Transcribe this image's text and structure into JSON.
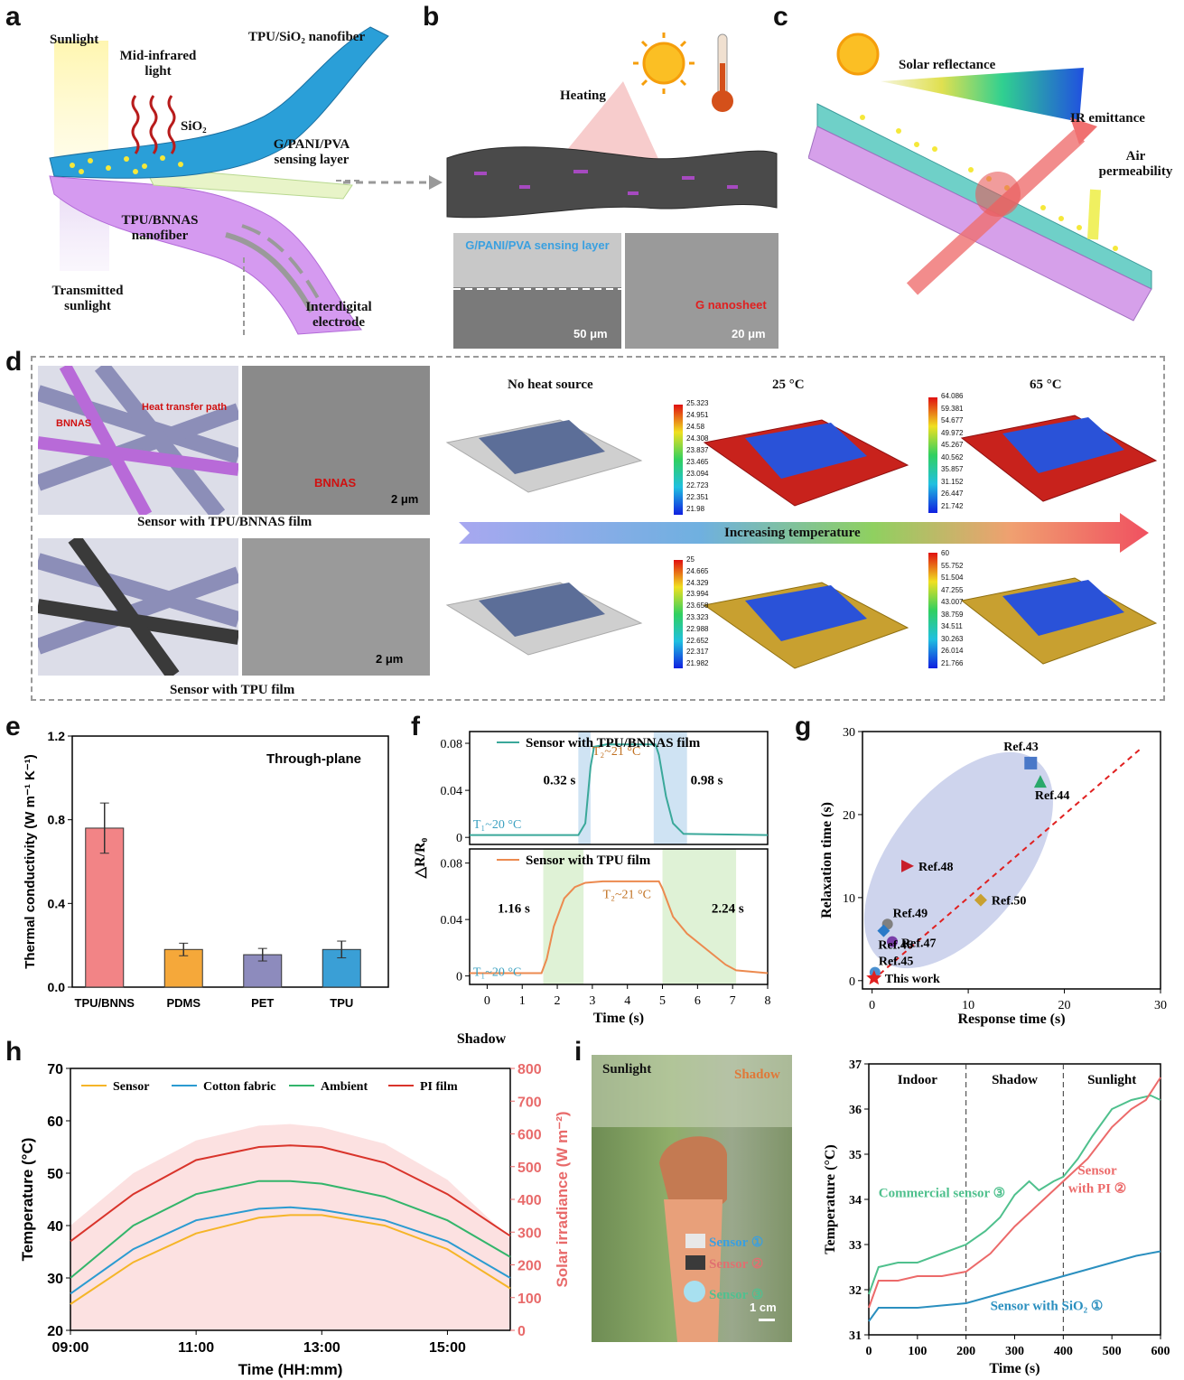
{
  "panel_labels": [
    "a",
    "b",
    "c",
    "d",
    "e",
    "f",
    "g",
    "h",
    "i"
  ],
  "panel_a": {
    "labels": [
      "Sunlight",
      "Mid-infrared light",
      "TPU/SiO₂ nanofiber",
      "SiO₂",
      "G/PANI/PVA sensing layer",
      "TPU/BNNAS nanofiber",
      "Transmitted sunlight",
      "Interdigital electrode"
    ]
  },
  "panel_b": {
    "heating": "Heating",
    "sem_left_label": "G/PANI/PVA sensing layer",
    "sem_left_scale": "50 μm",
    "sem_right_label": "G nanosheet",
    "sem_right_scale": "20 μm"
  },
  "panel_c": {
    "labels": [
      "Solar reflectance",
      "IR emittance",
      "Air permeability"
    ]
  },
  "panel_d": {
    "top_caption": "Sensor with TPU/BNNAS film",
    "bottom_caption": "Sensor with TPU film",
    "bnnas": "BNNAS",
    "heat_path": "Heat transfer path",
    "sem_bnnas": "BNNAS",
    "scale": "2 μm",
    "headers": [
      "No heat source",
      "25 °C",
      "65 °C"
    ],
    "arrow_text": "Increasing temperature",
    "legend_top_25": [
      "25.323",
      "24.951",
      "24.58",
      "24.308",
      "23.837",
      "23.465",
      "23.094",
      "22.723",
      "22.351",
      "21.98"
    ],
    "legend_top_65": [
      "64.086",
      "59.381",
      "54.677",
      "49.972",
      "45.267",
      "40.562",
      "35.857",
      "31.152",
      "26.447",
      "21.742"
    ],
    "legend_bot_25": [
      "25",
      "24.665",
      "24.329",
      "23.994",
      "23.658",
      "23.323",
      "22.988",
      "22.652",
      "22.317",
      "21.982"
    ],
    "legend_bot_65": [
      "60",
      "55.752",
      "51.504",
      "47.255",
      "43.007",
      "38.759",
      "34.511",
      "30.263",
      "26.014",
      "21.766"
    ]
  },
  "panel_i_photo": {
    "sunlight": "Sunlight",
    "shadow": "Shadow",
    "sensor1": "Sensor ①",
    "sensor2": "Sensor ②",
    "sensor3": "Sensor ③",
    "scale": "1 cm"
  },
  "colors": {
    "red": "#e8666a",
    "orange": "#f5a623",
    "purple_bar": "#8a86b8",
    "blue": "#2b9bd1",
    "green": "#3cb878",
    "teal": "#3aa89a",
    "pi_red": "#d9342b"
  },
  "chart_data": [
    {
      "id": "e",
      "type": "bar",
      "title": "Through-plane",
      "ylabel": "Thermal conductivity (W m⁻¹ K⁻¹)",
      "xlabel": "",
      "categories": [
        "TPU/BNNS",
        "PDMS",
        "PET",
        "TPU"
      ],
      "values": [
        0.76,
        0.18,
        0.155,
        0.18
      ],
      "errors": [
        0.12,
        0.03,
        0.03,
        0.04
      ],
      "colors": [
        "#f28486",
        "#f5a83a",
        "#8d8bbd",
        "#3a9fd6"
      ],
      "ylim": [
        0.0,
        1.2
      ],
      "yticks": [
        "0.0",
        "0.4",
        "0.8",
        "1.2"
      ]
    },
    {
      "id": "f",
      "type": "line",
      "ylabel": "△R/R₀",
      "xlabel": "Time (s)",
      "xlim": [
        -0.5,
        8
      ],
      "xticks": [
        "0",
        "1",
        "2",
        "3",
        "4",
        "5",
        "6",
        "7",
        "8"
      ],
      "yticks": [
        "0",
        "0.04",
        "0.08"
      ],
      "series": [
        {
          "name": "Sensor with TPU/BNNAS film",
          "color": "#3aa89a",
          "x": [
            -0.5,
            2.6,
            2.8,
            2.95,
            3.05,
            3.4,
            4.8,
            4.9,
            5.1,
            5.3,
            5.6,
            8
          ],
          "y": [
            0.002,
            0.002,
            0.012,
            0.06,
            0.077,
            0.079,
            0.079,
            0.07,
            0.035,
            0.012,
            0.003,
            0.002
          ],
          "annotations": [
            "0.32 s",
            "0.98 s",
            "T₁~20 °C",
            "T₂~21 °C"
          ]
        },
        {
          "name": "Sensor with TPU film",
          "color": "#ec8a4f",
          "x": [
            -0.5,
            1.55,
            1.7,
            1.9,
            2.2,
            2.5,
            2.8,
            3.3,
            4.9,
            5.0,
            5.3,
            5.7,
            6.2,
            6.8,
            7.1,
            8
          ],
          "y": [
            0.002,
            0.002,
            0.012,
            0.035,
            0.055,
            0.063,
            0.066,
            0.067,
            0.067,
            0.062,
            0.042,
            0.03,
            0.02,
            0.008,
            0.004,
            0.002
          ],
          "annotations": [
            "1.16 s",
            "2.24 s",
            "T₁~20 °C",
            "T₂~21 °C"
          ]
        }
      ]
    },
    {
      "id": "g",
      "type": "scatter",
      "xlabel": "Response time (s)",
      "ylabel": "Relaxation time (s)",
      "xlim": [
        -1,
        30
      ],
      "ylim": [
        -1,
        30
      ],
      "xticks": [
        "0",
        "10",
        "20",
        "30"
      ],
      "yticks": [
        "0",
        "10",
        "20",
        "30"
      ],
      "points": [
        {
          "label": "Ref.43",
          "x": 16.5,
          "y": 26.2,
          "shape": "square",
          "color": "#4a78c8"
        },
        {
          "label": "Ref.44",
          "x": 17.5,
          "y": 24.0,
          "shape": "triangle",
          "color": "#2aa86a"
        },
        {
          "label": "Ref.48",
          "x": 3.7,
          "y": 13.8,
          "shape": "tri-right",
          "color": "#c81e2a"
        },
        {
          "label": "Ref.50",
          "x": 11.3,
          "y": 9.7,
          "shape": "diamond",
          "color": "#c8a030"
        },
        {
          "label": "Ref.49",
          "x": 1.6,
          "y": 6.8,
          "shape": "hexagon",
          "color": "#808080"
        },
        {
          "label": "Ref.47",
          "x": 2.1,
          "y": 4.7,
          "shape": "pentagon",
          "color": "#7a3ea8"
        },
        {
          "label": "Ref.46",
          "x": 1.2,
          "y": 6.0,
          "shape": "diamond",
          "color": "#2a7ac8"
        },
        {
          "label": "Ref.45",
          "x": 0.3,
          "y": 1.0,
          "shape": "circle",
          "color": "#4a90d0"
        },
        {
          "label": "This work",
          "x": 0.2,
          "y": 0.3,
          "shape": "star",
          "color": "#e02020"
        }
      ]
    },
    {
      "id": "h",
      "type": "line",
      "xlabel": "Time (HH:mm)",
      "ylabel": "Temperature (°C)",
      "y2label": "Solar irradiance (W m⁻²)",
      "annotation": "Shadow",
      "xticks": [
        "09:00",
        "11:00",
        "13:00",
        "15:00"
      ],
      "xlim": [
        9,
        16
      ],
      "ylim": [
        20,
        70
      ],
      "y2lim": [
        0,
        800
      ],
      "yticks": [
        "20",
        "30",
        "40",
        "50",
        "60",
        "70"
      ],
      "y2ticks": [
        "0",
        "100",
        "200",
        "300",
        "400",
        "500",
        "600",
        "700",
        "800"
      ],
      "x": [
        9,
        10,
        11,
        12,
        12.5,
        13,
        14,
        15,
        16
      ],
      "series": [
        {
          "name": "Sensor",
          "color": "#f5b528",
          "y": [
            25,
            33,
            38.5,
            41.5,
            42,
            42,
            40,
            35.5,
            28
          ]
        },
        {
          "name": "Cotton fabric",
          "color": "#2b9bd1",
          "y": [
            27,
            35.5,
            41,
            43.2,
            43.5,
            43,
            41,
            37,
            30
          ]
        },
        {
          "name": "Ambient",
          "color": "#33b56b",
          "y": [
            30,
            40,
            46,
            48.5,
            48.5,
            48,
            45.5,
            41,
            34
          ]
        },
        {
          "name": "PI film",
          "color": "#d9342b",
          "y": [
            37,
            46,
            52.5,
            55,
            55.3,
            55,
            52,
            46,
            38
          ]
        }
      ],
      "irradiance": {
        "x": [
          9,
          10,
          11,
          12,
          12.5,
          13,
          14,
          15,
          16
        ],
        "y": [
          320,
          480,
          580,
          625,
          630,
          620,
          570,
          460,
          280
        ]
      }
    },
    {
      "id": "i",
      "type": "line",
      "xlabel": "Time (s)",
      "ylabel": "Temperature (°C)",
      "xlim": [
        0,
        600
      ],
      "ylim": [
        31,
        37
      ],
      "xticks": [
        "0",
        "100",
        "200",
        "300",
        "400",
        "500",
        "600"
      ],
      "yticks": [
        "31",
        "32",
        "33",
        "34",
        "35",
        "36",
        "37"
      ],
      "regions": [
        "Indoor",
        "Shadow",
        "Sunlight"
      ],
      "region_bounds": [
        200,
        400
      ],
      "series": [
        {
          "name": "Commercial sensor ③",
          "color": "#4fc08d",
          "x": [
            0,
            20,
            60,
            100,
            150,
            200,
            240,
            270,
            300,
            330,
            350,
            380,
            400,
            430,
            460,
            500,
            540,
            580,
            600
          ],
          "y": [
            31.9,
            32.5,
            32.6,
            32.6,
            32.8,
            33.0,
            33.3,
            33.6,
            34.1,
            34.4,
            34.2,
            34.4,
            34.5,
            34.9,
            35.4,
            36.0,
            36.2,
            36.3,
            36.2
          ]
        },
        {
          "name": "Sensor with PI ②",
          "color": "#ec6a6a",
          "x": [
            0,
            20,
            60,
            100,
            150,
            200,
            250,
            300,
            350,
            400,
            450,
            500,
            540,
            570,
            600
          ],
          "y": [
            31.6,
            32.2,
            32.2,
            32.3,
            32.3,
            32.4,
            32.8,
            33.4,
            33.9,
            34.4,
            34.9,
            35.6,
            36.0,
            36.2,
            36.7
          ]
        },
        {
          "name": "Sensor with SiO₂ ①",
          "color": "#2a8fbf",
          "x": [
            0,
            20,
            60,
            100,
            150,
            200,
            250,
            300,
            350,
            400,
            450,
            500,
            550,
            600
          ],
          "y": [
            31.3,
            31.6,
            31.6,
            31.6,
            31.65,
            31.7,
            31.85,
            32.0,
            32.15,
            32.3,
            32.45,
            32.6,
            32.75,
            32.85
          ]
        }
      ]
    }
  ]
}
